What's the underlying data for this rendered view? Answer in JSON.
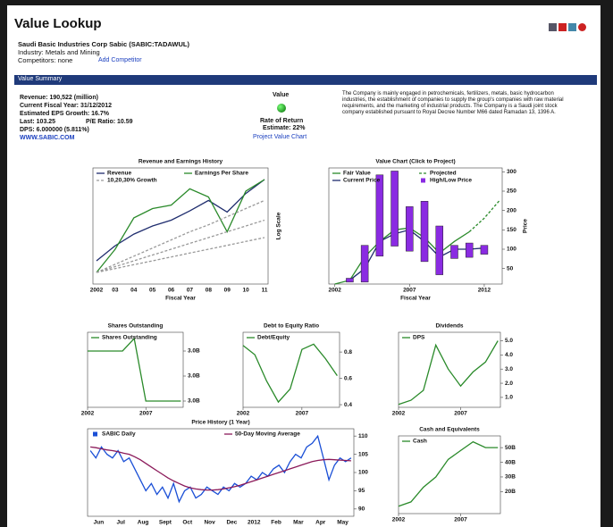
{
  "header": {
    "title": "Value Lookup",
    "company": "Saudi Basic Industries Corp Sabic (SABIC:TADAWUL)",
    "industry": "Industry: Metals and Mining",
    "competitors": "Competitors: none",
    "add_competitor": "Add Competitor"
  },
  "summary": {
    "heading": "Value Summary",
    "revenue": "Revenue: 190,522 (million)",
    "fiscal_year": "Current Fiscal Year: 31/12/2012",
    "eps_growth": "Estimated EPS Growth: 16.7%",
    "last": "Last: 103.25",
    "pe_ratio": "P/E Ratio: 10.59",
    "dps": "DPS: 6.000000 (5.811%)",
    "website": "WWW.SABIC.COM",
    "value_label": "Value",
    "rate_of_return": "Rate of Return",
    "estimate": "Estimate: 22%",
    "project_link": "Project Value Chart",
    "description": "The Company is mainly engaged in petrochemicals, fertilizers, metals, basic hydrocarbon industries, the establishment of companies to supply the group's companies with raw material requirements, and the marketing of industrial products. The Company is a Saudi joint stock company established pursuant to Royal Decree Number M66 dated Ramadan 13, 1396 A."
  },
  "chart_data": [
    {
      "type": "line",
      "title": "Revenue and Earnings History",
      "x_label": "Fiscal Year",
      "y_label": "Log Scale",
      "categories": [
        "2002",
        "03",
        "04",
        "05",
        "06",
        "07",
        "08",
        "09",
        "10",
        "11"
      ],
      "ylim": [
        0,
        100
      ],
      "series": [
        {
          "name": "Revenue",
          "color": "#1f2d6e",
          "values": [
            20,
            33,
            43,
            50,
            55,
            63,
            72,
            62,
            78,
            90
          ]
        },
        {
          "name": "Earnings Per Share",
          "color": "#2a8a2a",
          "values": [
            10,
            30,
            57,
            65,
            68,
            82,
            75,
            45,
            80,
            90
          ]
        },
        {
          "name": "10,20,30% Growth",
          "color": "#999999",
          "dash": true,
          "lines": [
            [
              10,
              13.3,
              16.7,
              20,
              23.3,
              26.7,
              30,
              33.3,
              36.7,
              40
            ],
            [
              10,
              15,
              20,
              25,
              30,
              35,
              40,
              45,
              50,
              55
            ],
            [
              10,
              17,
              24,
              31,
              38,
              45,
              51,
              58,
              65,
              72
            ]
          ]
        }
      ]
    },
    {
      "type": "line",
      "title": "Value Chart (Click to Project)",
      "x_label": "Fiscal Year",
      "y_label": "Price",
      "x": [
        2002,
        2003,
        2004,
        2005,
        2006,
        2007,
        2008,
        2009,
        2010,
        2011,
        2012,
        2013
      ],
      "xlim": [
        2001.6,
        2013.2
      ],
      "xticks": [
        2002,
        2007,
        2012
      ],
      "ylim": [
        10,
        310
      ],
      "yticks": [
        50,
        100,
        150,
        200,
        250,
        300
      ],
      "series": [
        {
          "name": "Fair Value",
          "color": "#2a8a2a",
          "values": [
            10,
            20,
            80,
            120,
            150,
            155,
            130,
            90,
            120,
            145,
            null,
            null
          ]
        },
        {
          "name": "Projected",
          "color": "#2a8a2a",
          "dash": true,
          "values": [
            null,
            null,
            null,
            null,
            null,
            null,
            null,
            null,
            null,
            145,
            180,
            225
          ]
        },
        {
          "name": "Current Price",
          "color": "#1f2d6e",
          "values": [
            null,
            20,
            50,
            120,
            140,
            150,
            120,
            80,
            100,
            100,
            103,
            null
          ]
        },
        {
          "name": "High/Low Price",
          "color": "#8a2be2",
          "marker": "square",
          "low": [
            null,
            15,
            15,
            82,
            108,
            95,
            68,
            34,
            76,
            79,
            87,
            null
          ],
          "high": [
            null,
            25,
            110,
            292,
            302,
            210,
            224,
            160,
            110,
            116,
            110,
            null
          ]
        }
      ]
    },
    {
      "type": "line",
      "title": "Shares Outstanding",
      "x": [
        2002,
        2003,
        2004,
        2005,
        2006,
        2007,
        2008,
        2009,
        2010
      ],
      "xlim": [
        2002,
        2010.2
      ],
      "xticks": [
        2002,
        2007
      ],
      "ylim": [
        2.995,
        3.007
      ],
      "yticks": [
        {
          "value": 3.004,
          "label": "3.0B"
        },
        {
          "value": 3.0,
          "label": "3.0B"
        },
        {
          "value": 2.996,
          "label": "3.0B"
        }
      ],
      "series": [
        {
          "name": "Shares Outstanding",
          "color": "#2a8a2a",
          "values": [
            3.004,
            3.004,
            3.004,
            3.004,
            3.006,
            2.996,
            2.996,
            2.996,
            2.996
          ]
        }
      ]
    },
    {
      "type": "line",
      "title": "Debt to Equity Ratio",
      "x": [
        2002,
        2003,
        2004,
        2005,
        2006,
        2007,
        2008,
        2009,
        2010
      ],
      "xlim": [
        2002,
        2010.2
      ],
      "xticks": [
        2002,
        2007
      ],
      "ylim": [
        0.38,
        0.95
      ],
      "yticks": [
        0.8,
        0.6,
        0.4
      ],
      "series": [
        {
          "name": "Debt/Equity",
          "color": "#2a8a2a",
          "values": [
            0.85,
            0.78,
            0.58,
            0.42,
            0.52,
            0.82,
            0.86,
            0.75,
            0.62
          ]
        }
      ]
    },
    {
      "type": "line",
      "title": "Dividends",
      "x": [
        2002,
        2003,
        2004,
        2005,
        2006,
        2007,
        2008,
        2009,
        2010
      ],
      "xlim": [
        2002,
        2010.2
      ],
      "xticks": [
        2002,
        2007
      ],
      "ylim": [
        0.3,
        5.6
      ],
      "yticks": [
        {
          "value": 5,
          "label": "5.0"
        },
        {
          "value": 4,
          "label": "4.0"
        },
        {
          "value": 3,
          "label": "3.0"
        },
        {
          "value": 2,
          "label": "2.0"
        },
        {
          "value": 1,
          "label": "1.0"
        }
      ],
      "series": [
        {
          "name": "DPS",
          "color": "#2a8a2a",
          "values": [
            0.5,
            0.8,
            1.5,
            4.7,
            3.0,
            1.8,
            2.8,
            3.5,
            5.0
          ]
        }
      ]
    },
    {
      "type": "line",
      "title": "Price History (1 Year)",
      "x_labels": [
        "Jun",
        "Jul",
        "Aug",
        "Sept",
        "Oct",
        "Nov",
        "Dec",
        "2012",
        "Feb",
        "Mar",
        "Apr",
        "May"
      ],
      "ylim": [
        88,
        112
      ],
      "yticks": [
        90,
        95,
        100,
        105,
        110
      ],
      "series": [
        {
          "name": "SABIC Daily",
          "color": "#1a4fd6",
          "marker": "square",
          "values": [
            106,
            104,
            107,
            105,
            104,
            106,
            103,
            104,
            101,
            98,
            95,
            97,
            94,
            96,
            93,
            97,
            92,
            95,
            96,
            93,
            94,
            96,
            95,
            94,
            96,
            95,
            97,
            96,
            97,
            99,
            98,
            100,
            99,
            101,
            102,
            100,
            103,
            105,
            104,
            107,
            108,
            110,
            104,
            98,
            102,
            104,
            103,
            104
          ]
        },
        {
          "name": "50-Day Moving Average",
          "color": "#8b1a5a",
          "values": [
            107,
            106.8,
            106.5,
            106.2,
            106,
            105.7,
            105.3,
            105,
            104.3,
            103.5,
            102.5,
            101.5,
            100.5,
            99.5,
            98.5,
            97.7,
            97,
            96.3,
            95.8,
            95.5,
            95.3,
            95.2,
            95.2,
            95.3,
            95.5,
            95.8,
            96.1,
            96.5,
            97,
            97.5,
            98,
            98.5,
            99,
            99.5,
            100,
            100.5,
            101,
            101.5,
            102,
            102.5,
            103,
            103.3,
            103.5,
            103.6,
            103.5,
            103.4,
            103.3,
            103.2
          ]
        }
      ]
    },
    {
      "type": "line",
      "title": "Cash and Equivalents",
      "x": [
        2002,
        2003,
        2004,
        2005,
        2006,
        2007,
        2008,
        2009,
        2010
      ],
      "xlim": [
        2002,
        2010.2
      ],
      "xticks": [
        2002,
        2007
      ],
      "ylim": [
        5,
        58
      ],
      "yticks": [
        {
          "value": 50,
          "label": "50B"
        },
        {
          "value": 40,
          "label": "40B"
        },
        {
          "value": 30,
          "label": "30B"
        },
        {
          "value": 20,
          "label": "20B"
        }
      ],
      "series": [
        {
          "name": "Cash",
          "color": "#2a8a2a",
          "values": [
            10,
            13,
            23,
            30,
            42,
            48,
            54,
            50,
            50
          ]
        }
      ]
    }
  ]
}
